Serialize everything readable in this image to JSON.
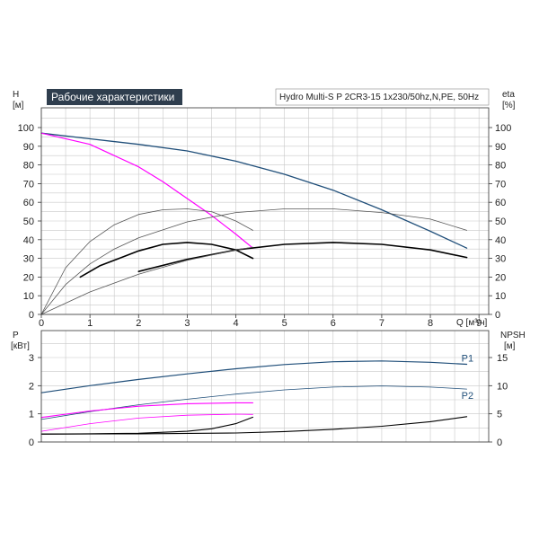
{
  "colors": {
    "navy": "#1f4e79",
    "magenta": "#ff00ff",
    "black": "#000000",
    "gray_line": "#555555",
    "grid": "#c8c8c8",
    "title_bg": "#2f3e4e"
  },
  "chart_data": [
    {
      "type": "line",
      "panel": "performance",
      "title": "Рабочие характеристики",
      "subtitle": "Hydro Multi-S P 2CR3-15 1x230/50hz,N,PE, 50Hz",
      "xlabel": "Q [м³/ч]",
      "ylabel_left": {
        "symbol": "H",
        "unit": "[м]"
      },
      "ylabel_right": {
        "symbol": "eta",
        "unit": "[%]"
      },
      "xlim": [
        0,
        9.2
      ],
      "ylim": [
        0,
        105
      ],
      "xticks": [
        "0",
        "1",
        "2",
        "3",
        "4",
        "5",
        "6",
        "7",
        "8",
        "9"
      ],
      "yticks": [
        "0",
        "10",
        "20",
        "30",
        "40",
        "50",
        "60",
        "70",
        "80",
        "90",
        "100"
      ],
      "grid": true,
      "series": [
        {
          "axis": "H",
          "color": "navy",
          "width": 1.3,
          "x": [
            0,
            1,
            2,
            3,
            4,
            5,
            6,
            7,
            8,
            8.75
          ],
          "y": [
            97,
            94,
            91,
            87.5,
            82,
            75,
            66.5,
            56,
            44.5,
            35.5
          ]
        },
        {
          "axis": "H",
          "color": "magenta",
          "width": 1.2,
          "x": [
            0,
            1,
            2,
            2.5,
            3,
            3.5,
            4,
            4.35
          ],
          "y": [
            97,
            91,
            79,
            71,
            62,
            53,
            43,
            35.5
          ]
        },
        {
          "axis": "eta",
          "color": "gray_line",
          "width": 0.8,
          "x": [
            0,
            0.5,
            1,
            1.5,
            2,
            2.5,
            3,
            3.5,
            4,
            4.35
          ],
          "y": [
            0,
            25,
            39,
            48,
            53.5,
            56,
            56.5,
            55,
            50,
            45
          ]
        },
        {
          "axis": "eta",
          "color": "black",
          "width": 1.6,
          "x": [
            0.8,
            1.2,
            1.6,
            2,
            2.5,
            3,
            3.5,
            4,
            4.35
          ],
          "y": [
            20,
            26,
            30,
            34,
            37.5,
            38.5,
            37.5,
            34.5,
            30
          ]
        },
        {
          "axis": "eta",
          "color": "gray_line",
          "width": 0.8,
          "x": [
            0,
            0.5,
            1,
            1.5,
            2,
            3,
            4,
            5,
            6,
            7,
            8,
            8.75
          ],
          "y": [
            0,
            16,
            27,
            35,
            41,
            49.5,
            54.5,
            56.5,
            56.5,
            54.5,
            51,
            45
          ]
        },
        {
          "axis": "eta",
          "color": "black",
          "width": 1.6,
          "x": [
            2,
            3,
            4,
            5,
            6,
            7,
            8,
            8.75
          ],
          "y": [
            23,
            29.5,
            34.5,
            37.5,
            38.5,
            37.5,
            34.5,
            30.5
          ]
        },
        {
          "axis": "eta",
          "color": "gray_line",
          "width": 0.8,
          "x": [
            0,
            1,
            2,
            3,
            4,
            4.35
          ],
          "y": [
            0,
            12,
            21.5,
            29,
            34.5,
            36
          ]
        }
      ]
    },
    {
      "type": "line",
      "panel": "power",
      "ylabel_left": {
        "symbol": "P",
        "unit": "[кВт]"
      },
      "ylabel_right": {
        "symbol": "NPSH",
        "unit": "[м]"
      },
      "xlim": [
        0,
        9.2
      ],
      "ylim": [
        0,
        3.7
      ],
      "yticks_left": [
        "0",
        "1",
        "2",
        "3"
      ],
      "yticks_right": [
        "0",
        "5",
        "10",
        "15"
      ],
      "grid": true,
      "series": [
        {
          "name": "P1",
          "color": "navy",
          "width": 1.2,
          "x": [
            0,
            1,
            2,
            3,
            4,
            5,
            6,
            7,
            8,
            8.75
          ],
          "y": [
            1.75,
            2.0,
            2.22,
            2.42,
            2.6,
            2.75,
            2.85,
            2.88,
            2.83,
            2.76
          ]
        },
        {
          "name": "P2",
          "color": "navy",
          "width": 0.8,
          "x": [
            0,
            1,
            2,
            3,
            4,
            5,
            6,
            7,
            8,
            8.75
          ],
          "y": [
            0.8,
            1.08,
            1.32,
            1.52,
            1.7,
            1.85,
            1.95,
            1.99,
            1.95,
            1.88
          ]
        },
        {
          "color": "magenta",
          "width": 1.1,
          "x": [
            0,
            1,
            2,
            3,
            4,
            4.35
          ],
          "y": [
            0.87,
            1.1,
            1.27,
            1.36,
            1.39,
            1.39
          ]
        },
        {
          "color": "magenta",
          "width": 0.8,
          "x": [
            0,
            1,
            2,
            3,
            4,
            4.35
          ],
          "y": [
            0.38,
            0.65,
            0.85,
            0.95,
            0.99,
            0.98
          ]
        },
        {
          "color": "black",
          "width": 1.1,
          "x": [
            0,
            1,
            2,
            3,
            3.5,
            4,
            4.35
          ],
          "y": [
            0.28,
            0.29,
            0.31,
            0.38,
            0.47,
            0.65,
            0.88
          ]
        },
        {
          "color": "black",
          "width": 1.1,
          "x": [
            0,
            2,
            4,
            5,
            6,
            7,
            8,
            8.75
          ],
          "y": [
            0.28,
            0.29,
            0.32,
            0.37,
            0.45,
            0.56,
            0.72,
            0.9
          ]
        }
      ]
    }
  ]
}
